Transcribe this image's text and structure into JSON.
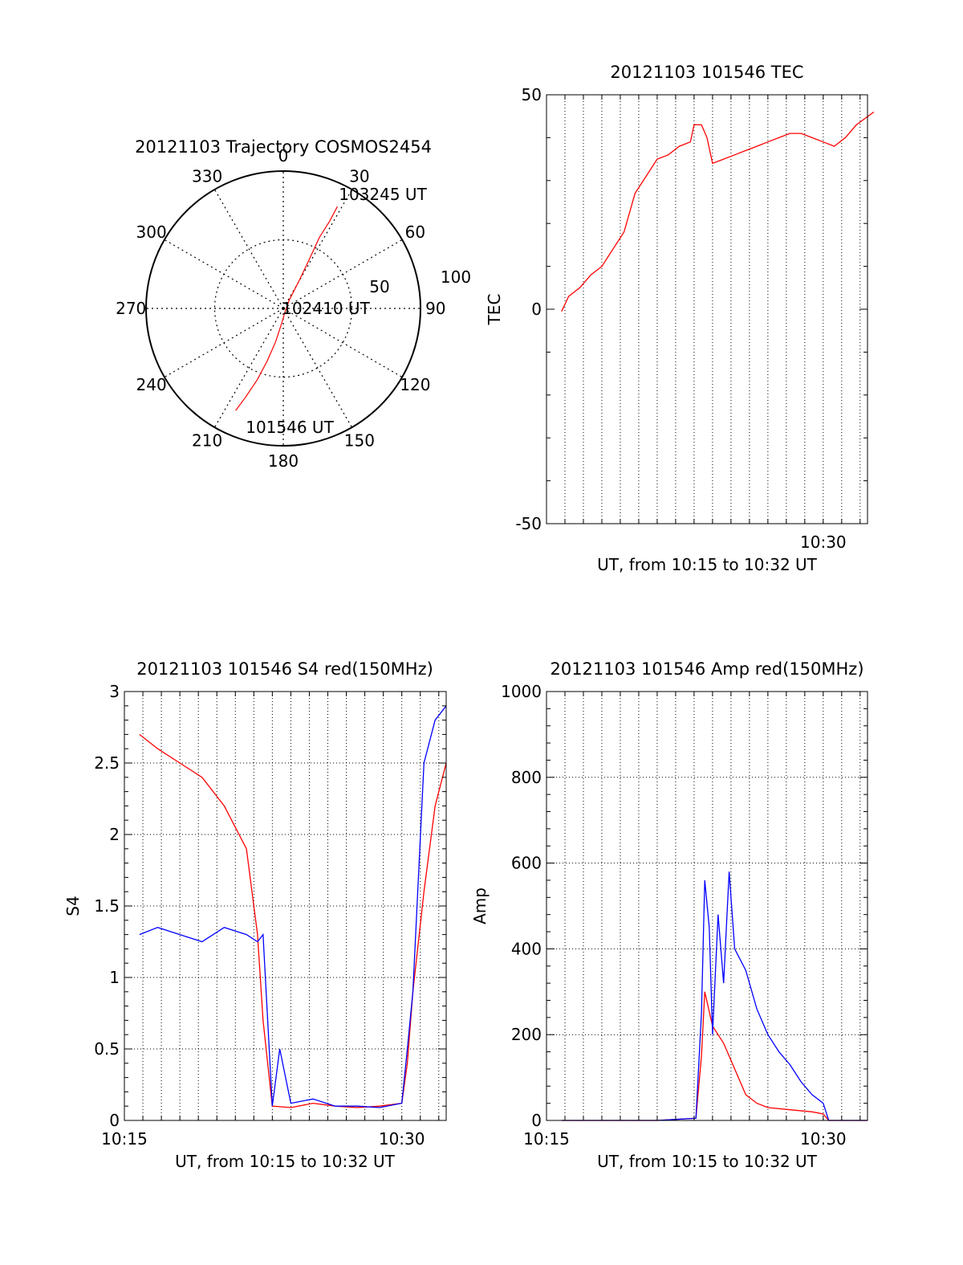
{
  "colors": {
    "red": "#ff0000",
    "blue": "#0000ff",
    "axis": "#000000",
    "grid": "#000000"
  },
  "chart_data": [
    {
      "id": "trajectory",
      "type": "polar",
      "title": "20121103 Trajectory COSMOS2454",
      "angle_labels": [
        "0",
        "30",
        "60",
        "90",
        "120",
        "150",
        "180",
        "210",
        "240",
        "270",
        "300",
        "330"
      ],
      "radial_labels": [
        "50",
        "100"
      ],
      "radial_range": [
        0,
        100
      ],
      "grid": true,
      "series": [
        {
          "color": "red",
          "points": [
            {
              "az": 205,
              "r": 82
            },
            {
              "az": 203,
              "r": 70
            },
            {
              "az": 200,
              "r": 55
            },
            {
              "az": 197,
              "r": 40
            },
            {
              "az": 193,
              "r": 25
            },
            {
              "az": 185,
              "r": 10
            },
            {
              "az": 120,
              "r": 2
            },
            {
              "az": 35,
              "r": 8
            },
            {
              "az": 30,
              "r": 22
            },
            {
              "az": 28,
              "r": 40
            },
            {
              "az": 27,
              "r": 58
            },
            {
              "az": 28,
              "r": 72
            },
            {
              "az": 28,
              "r": 84
            }
          ]
        }
      ],
      "annotations": [
        {
          "text": "101546 UT",
          "az": 205,
          "r": 85
        },
        {
          "text": "102410 UT",
          "az": 0,
          "r": 0
        },
        {
          "text": "103245 UT",
          "az": 28,
          "r": 86
        }
      ]
    },
    {
      "id": "tec",
      "type": "line",
      "title": "20121103 101546 TEC",
      "xlabel": "UT, from 10:15 to 10:32 UT",
      "ylabel": "TEC",
      "xlim": [
        10.25,
        10.54
      ],
      "ylim": [
        -50,
        50
      ],
      "x_ticks": [
        {
          "x": 10.5,
          "label": "10:30"
        }
      ],
      "y_ticks": [
        {
          "y": -50,
          "label": "-50"
        },
        {
          "y": 0,
          "label": "0"
        },
        {
          "y": 50,
          "label": "50"
        }
      ],
      "grid": "x-dotted",
      "series": [
        {
          "color": "red",
          "x": [
            10.2636,
            10.27,
            10.28,
            10.29,
            10.3,
            10.31,
            10.32,
            10.33,
            10.34,
            10.35,
            10.36,
            10.37,
            10.38,
            10.3833,
            10.39,
            10.395,
            10.4,
            10.41,
            10.42,
            10.43,
            10.44,
            10.45,
            10.46,
            10.47,
            10.48,
            10.49,
            10.5,
            10.51,
            10.52,
            10.53,
            10.5458
          ],
          "y": [
            -0.5,
            3,
            5,
            8,
            10,
            14,
            18,
            27,
            31,
            35,
            36,
            38,
            39,
            43,
            43,
            40,
            34,
            35,
            36,
            37,
            38,
            39,
            40,
            41,
            41,
            40,
            39,
            38,
            40,
            43,
            46
          ]
        }
      ]
    },
    {
      "id": "s4",
      "type": "line",
      "title": "20121103 101546 S4 red(150MHz)",
      "xlabel": "UT, from 10:15 to 10:32 UT",
      "ylabel": "S4",
      "xlim": [
        10.25,
        10.54
      ],
      "ylim": [
        0,
        3
      ],
      "x_ticks": [
        {
          "x": 10.25,
          "label": "10:15"
        },
        {
          "x": 10.5,
          "label": "10:30"
        }
      ],
      "y_ticks": [
        {
          "y": 0,
          "label": "0"
        },
        {
          "y": 0.5,
          "label": "0.5"
        },
        {
          "y": 1,
          "label": "1"
        },
        {
          "y": 1.5,
          "label": "1.5"
        },
        {
          "y": 2,
          "label": "2"
        },
        {
          "y": 2.5,
          "label": "2.5"
        },
        {
          "y": 3,
          "label": "3"
        }
      ],
      "grid": "dotted",
      "series": [
        {
          "color": "red",
          "x": [
            10.2636,
            10.28,
            10.3,
            10.32,
            10.34,
            10.36,
            10.37,
            10.375,
            10.3833,
            10.4,
            10.42,
            10.44,
            10.46,
            10.48,
            10.5,
            10.505,
            10.51,
            10.52,
            10.53,
            10.54
          ],
          "y": [
            2.7,
            2.6,
            2.5,
            2.4,
            2.2,
            1.9,
            1.3,
            0.7,
            0.1,
            0.09,
            0.12,
            0.1,
            0.09,
            0.1,
            0.12,
            0.4,
            0.9,
            1.6,
            2.2,
            2.5
          ]
        },
        {
          "color": "blue",
          "x": [
            10.2636,
            10.28,
            10.3,
            10.32,
            10.34,
            10.36,
            10.37,
            10.375,
            10.3833,
            10.39,
            10.4,
            10.42,
            10.44,
            10.46,
            10.48,
            10.5,
            10.505,
            10.51,
            10.52,
            10.53,
            10.54
          ],
          "y": [
            1.3,
            1.35,
            1.3,
            1.25,
            1.35,
            1.3,
            1.25,
            1.3,
            0.1,
            0.5,
            0.12,
            0.15,
            0.1,
            0.1,
            0.09,
            0.12,
            0.5,
            0.9,
            2.5,
            2.8,
            2.9
          ]
        }
      ]
    },
    {
      "id": "amp",
      "type": "line",
      "title": "20121103 101546 Amp red(150MHz)",
      "xlabel": "UT, from 10:15 to 10:32 UT",
      "ylabel": "Amp",
      "xlim": [
        10.25,
        10.54
      ],
      "ylim": [
        0,
        1000
      ],
      "x_ticks": [
        {
          "x": 10.25,
          "label": "10:15"
        },
        {
          "x": 10.5,
          "label": "10:30"
        }
      ],
      "y_ticks": [
        {
          "y": 0,
          "label": "0"
        },
        {
          "y": 200,
          "label": "200"
        },
        {
          "y": 400,
          "label": "400"
        },
        {
          "y": 600,
          "label": "600"
        },
        {
          "y": 800,
          "label": "800"
        },
        {
          "y": 1000,
          "label": "1000"
        }
      ],
      "grid": "dotted",
      "series": [
        {
          "color": "red",
          "x": [
            10.2636,
            10.3,
            10.35,
            10.385,
            10.39,
            10.393,
            10.4,
            10.41,
            10.42,
            10.43,
            10.44,
            10.45,
            10.47,
            10.49,
            10.5,
            10.505,
            10.54
          ],
          "y": [
            0,
            0,
            0,
            5,
            150,
            300,
            220,
            180,
            120,
            60,
            40,
            30,
            25,
            20,
            15,
            0,
            0
          ]
        },
        {
          "color": "blue",
          "x": [
            10.2636,
            10.3,
            10.35,
            10.385,
            10.39,
            10.393,
            10.397,
            10.4,
            10.405,
            10.41,
            10.415,
            10.42,
            10.43,
            10.44,
            10.45,
            10.46,
            10.47,
            10.48,
            10.49,
            10.5,
            10.505,
            10.54
          ],
          "y": [
            0,
            0,
            0,
            5,
            250,
            560,
            450,
            200,
            480,
            320,
            580,
            400,
            350,
            260,
            200,
            160,
            130,
            90,
            60,
            40,
            0,
            0
          ]
        }
      ]
    }
  ]
}
